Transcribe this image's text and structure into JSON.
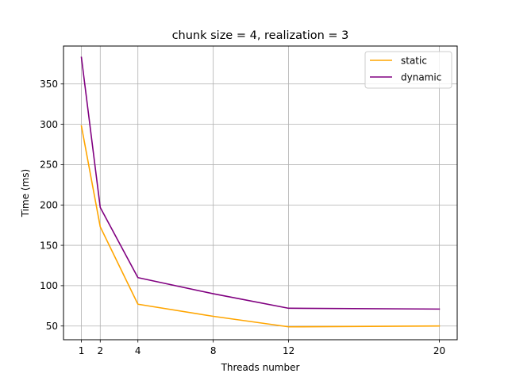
{
  "chart_data": {
    "type": "line",
    "title": "chunk size = 4, realization = 3",
    "xlabel": "Threads number",
    "ylabel": "Time (ms)",
    "x": [
      1,
      2,
      4,
      8,
      12,
      20
    ],
    "xticks": [
      1,
      2,
      4,
      8,
      12,
      20
    ],
    "yticks": [
      50,
      100,
      150,
      200,
      250,
      300,
      350
    ],
    "xlim": [
      0.05,
      20.95
    ],
    "ylim": [
      33,
      397
    ],
    "grid": true,
    "legend_position": "top-right",
    "series": [
      {
        "name": "static",
        "color": "#ffa500",
        "values": [
          298,
          173,
          77,
          62,
          49,
          50
        ]
      },
      {
        "name": "dynamic",
        "color": "#800080",
        "values": [
          383,
          197,
          110,
          90,
          72,
          71
        ]
      }
    ]
  }
}
